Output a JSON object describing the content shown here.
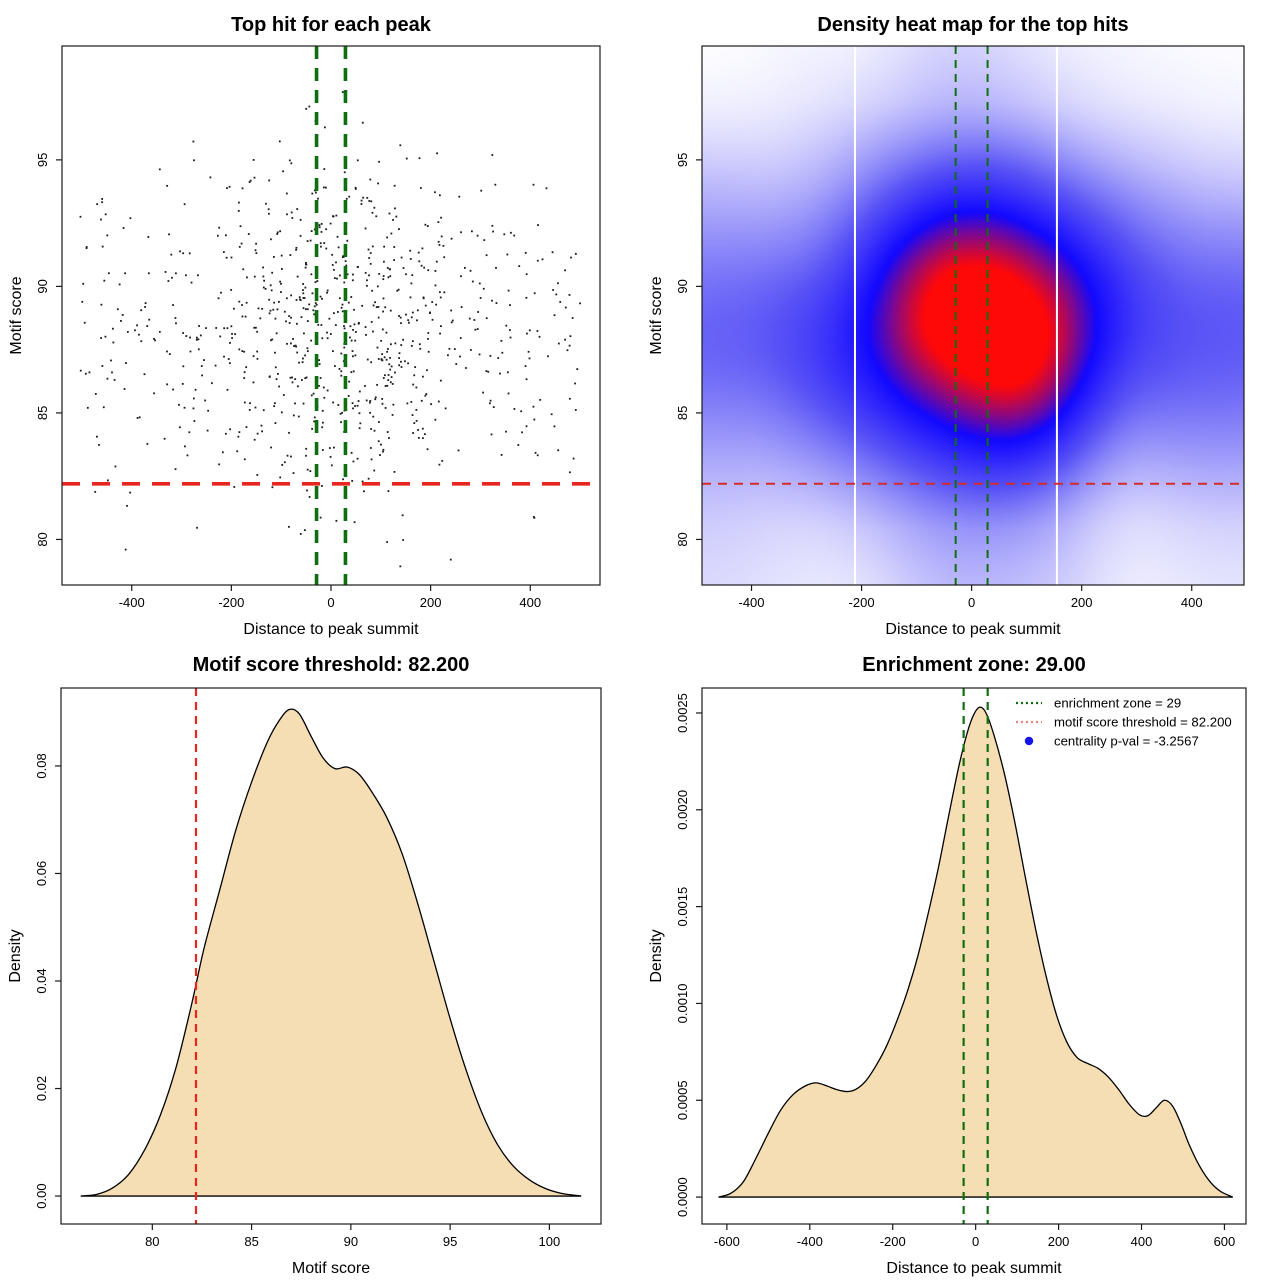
{
  "figure": {
    "background": "#ffffff",
    "layout": "2x2 R base-graphics style plots"
  },
  "colors": {
    "enrichment_green": "#0f6e0f",
    "threshold_red": "#e8251f",
    "legend_red": "#f28080",
    "legend_blue": "#1414e8",
    "density_fill": "#f5deb3",
    "scatter_point": "#1b1b1b",
    "axis": "#1a1a1a"
  },
  "chart_data": [
    {
      "panel": "top-left",
      "type": "scatter",
      "title": "Top hit for each peak",
      "xlabel": "Distance to peak summit",
      "ylabel": "Motif score",
      "xlim": [
        -540,
        540
      ],
      "ylim": [
        78.2,
        99.5
      ],
      "xticks": {
        "values": [
          -400,
          -200,
          0,
          200,
          400
        ],
        "labels": [
          "-400",
          "-200",
          "0",
          "200",
          "400"
        ]
      },
      "yticks": {
        "values": [
          80,
          85,
          90,
          95
        ],
        "labels": [
          "80",
          "85",
          "90",
          "95"
        ]
      },
      "n_points": 860,
      "points_note": "approx. 860 tiny black points; dense pyramid-shaped cloud centred on x=0, y 79-98.7; generated deterministically from these parameters",
      "point_generator": {
        "seed": 42,
        "center_prob": 0.5,
        "x_sigma": 150,
        "x_max": 503,
        "y_mean": 88.2,
        "y_sigma": 3.4,
        "y_min": 78.9,
        "env_center": 98.9,
        "env_edge": 93.5
      },
      "enrichment_zone": {
        "half_width": 29,
        "color": "#0f6e0f"
      },
      "threshold": {
        "value": 82.2,
        "axis": "y",
        "color": "#e8251f"
      }
    },
    {
      "panel": "top-right",
      "type": "heatmap",
      "title": "Density heat map for the top hits",
      "xlabel": "Distance to peak summit",
      "ylabel": "Motif score",
      "xlim": [
        -490,
        495
      ],
      "ylim": [
        78.2,
        99.5
      ],
      "xticks": {
        "values": [
          -400,
          -200,
          0,
          200,
          400
        ],
        "labels": [
          "-400",
          "-200",
          "0",
          "200",
          "400"
        ]
      },
      "yticks": {
        "values": [
          80,
          85,
          90,
          95
        ],
        "labels": [
          "80",
          "85",
          "90",
          "95"
        ]
      },
      "colormap": [
        "#ffffff",
        "#5852f6",
        "#1208ff",
        "#ff0808"
      ],
      "kde_sigma": {
        "x": 68,
        "y": 2.15
      },
      "hotspot": {
        "x": 0,
        "y": 89.5
      },
      "white_gridlines_x": [
        -212,
        155
      ],
      "enrichment_zone": {
        "half_width": 29,
        "color": "#0f6e0f"
      },
      "threshold": {
        "value": 82.2,
        "axis": "y",
        "color": "#d42a2a"
      }
    },
    {
      "panel": "bottom-left",
      "type": "density",
      "title": "Motif score threshold: 82.200",
      "xlabel": "Motif score",
      "ylabel": "Density",
      "xlim": [
        75.4,
        102.6
      ],
      "ylim": [
        -0.0052,
        0.0945
      ],
      "xticks": {
        "values": [
          80,
          85,
          90,
          95,
          100
        ],
        "labels": [
          "80",
          "85",
          "90",
          "95",
          "100"
        ]
      },
      "yticks": {
        "values": [
          0,
          0.02,
          0.04,
          0.06,
          0.08
        ],
        "labels": [
          "0.00",
          "0.02",
          "0.04",
          "0.06",
          "0.08"
        ]
      },
      "fill": "#f5deb3",
      "curve": [
        [
          76.4,
          0
        ],
        [
          77.2,
          0.0003
        ],
        [
          78,
          0.0015
        ],
        [
          78.8,
          0.004
        ],
        [
          79.6,
          0.0085
        ],
        [
          80.4,
          0.015
        ],
        [
          81.2,
          0.024
        ],
        [
          82,
          0.036
        ],
        [
          82.6,
          0.046
        ],
        [
          83.4,
          0.057
        ],
        [
          84.2,
          0.068
        ],
        [
          85,
          0.077
        ],
        [
          85.8,
          0.0845
        ],
        [
          86.4,
          0.0885
        ],
        [
          86.9,
          0.0905
        ],
        [
          87.4,
          0.0897
        ],
        [
          88,
          0.0855
        ],
        [
          88.6,
          0.0815
        ],
        [
          89.2,
          0.0795
        ],
        [
          89.8,
          0.0798
        ],
        [
          90.4,
          0.0785
        ],
        [
          91,
          0.0755
        ],
        [
          91.8,
          0.0705
        ],
        [
          92.6,
          0.0635
        ],
        [
          93.4,
          0.054
        ],
        [
          94.2,
          0.0435
        ],
        [
          95,
          0.033
        ],
        [
          95.8,
          0.0235
        ],
        [
          96.6,
          0.0155
        ],
        [
          97.4,
          0.0095
        ],
        [
          98.2,
          0.0055
        ],
        [
          99,
          0.003
        ],
        [
          99.8,
          0.0014
        ],
        [
          100.6,
          0.0005
        ],
        [
          101.4,
          0.0001
        ],
        [
          101.6,
          0
        ]
      ],
      "threshold": {
        "value": 82.2,
        "axis": "x",
        "color": "#e8251f"
      }
    },
    {
      "panel": "bottom-right",
      "type": "density",
      "title": "Enrichment zone: 29.00",
      "xlabel": "Distance to peak summit",
      "ylabel": "Density",
      "xlim": [
        -660,
        652
      ],
      "ylim": [
        -0.000139,
        0.002629
      ],
      "xticks": {
        "values": [
          -600,
          -400,
          -200,
          0,
          200,
          400,
          600
        ],
        "labels": [
          "-600",
          "-400",
          "-200",
          "0",
          "200",
          "400",
          "600"
        ]
      },
      "yticks": {
        "values": [
          0,
          0.0005,
          0.001,
          0.0015,
          0.002,
          0.0025
        ],
        "labels": [
          "0.0000",
          "0.0005",
          "0.0010",
          "0.0015",
          "0.0020",
          "0.0025"
        ]
      },
      "fill": "#f5deb3",
      "curve": [
        [
          -620,
          0
        ],
        [
          -590,
          2e-05
        ],
        [
          -560,
          8e-05
        ],
        [
          -530,
          0.0002
        ],
        [
          -500,
          0.00033
        ],
        [
          -470,
          0.00045
        ],
        [
          -440,
          0.00053
        ],
        [
          -410,
          0.000575
        ],
        [
          -385,
          0.00059
        ],
        [
          -360,
          0.000575
        ],
        [
          -335,
          0.000555
        ],
        [
          -310,
          0.000545
        ],
        [
          -290,
          0.000555
        ],
        [
          -265,
          0.0006
        ],
        [
          -240,
          0.00068
        ],
        [
          -215,
          0.00078
        ],
        [
          -190,
          0.00091
        ],
        [
          -165,
          0.00106
        ],
        [
          -140,
          0.00124
        ],
        [
          -115,
          0.00146
        ],
        [
          -90,
          0.0017
        ],
        [
          -65,
          0.00197
        ],
        [
          -40,
          0.00223
        ],
        [
          -20,
          0.0024
        ],
        [
          -5,
          0.00249
        ],
        [
          10,
          0.00253
        ],
        [
          25,
          0.0025
        ],
        [
          45,
          0.00238
        ],
        [
          70,
          0.00218
        ],
        [
          95,
          0.00193
        ],
        [
          120,
          0.00165
        ],
        [
          145,
          0.00138
        ],
        [
          170,
          0.00114
        ],
        [
          195,
          0.00094
        ],
        [
          220,
          0.0008
        ],
        [
          245,
          0.00072
        ],
        [
          270,
          0.00069
        ],
        [
          295,
          0.000665
        ],
        [
          320,
          0.00062
        ],
        [
          345,
          0.000555
        ],
        [
          370,
          0.00048
        ],
        [
          395,
          0.000425
        ],
        [
          415,
          0.00042
        ],
        [
          435,
          0.00046
        ],
        [
          455,
          0.0005
        ],
        [
          475,
          0.00047
        ],
        [
          495,
          0.00038
        ],
        [
          515,
          0.00027
        ],
        [
          540,
          0.00016
        ],
        [
          565,
          8e-05
        ],
        [
          590,
          3e-05
        ],
        [
          620,
          0
        ]
      ],
      "enrichment_zone": {
        "half_width": 29,
        "color": "#0f6e0f"
      },
      "legend": {
        "entries": [
          {
            "swatch": "dotted-line",
            "color": "#0f6e0f",
            "label": "enrichment zone = 29"
          },
          {
            "swatch": "dotted-line",
            "color": "#f28080",
            "label": "motif score threshold = 82.200"
          },
          {
            "swatch": "point",
            "color": "#1414e8",
            "label": "centrality p-val = -3.2567"
          }
        ]
      }
    }
  ]
}
